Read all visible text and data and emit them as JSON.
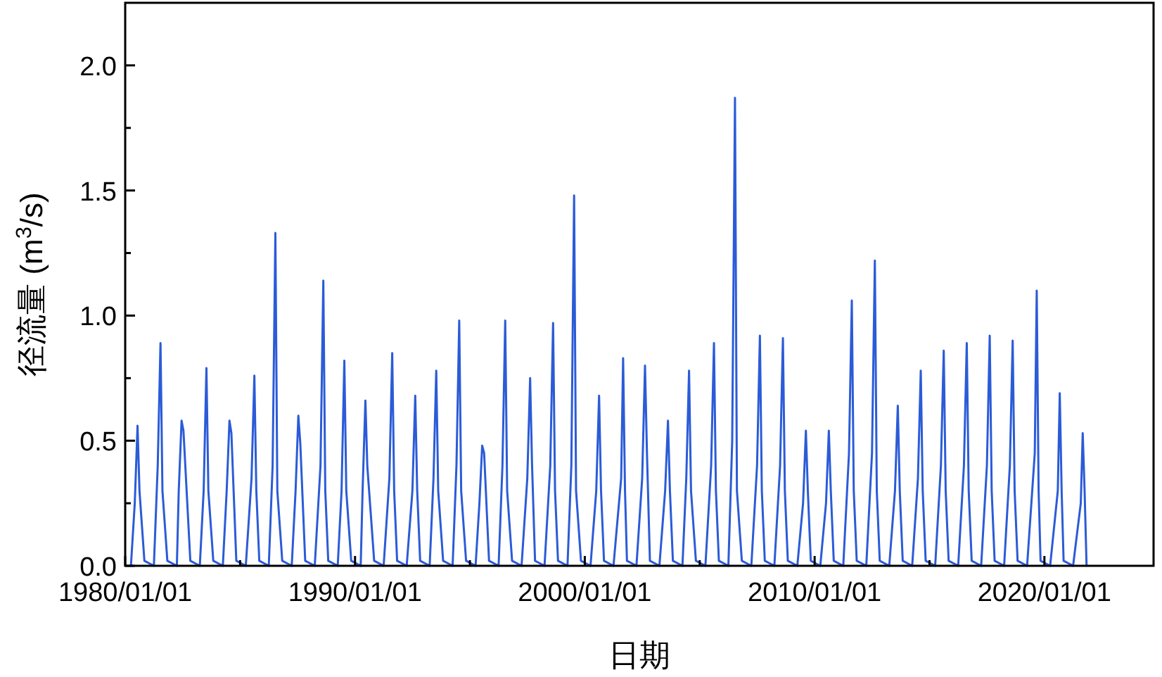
{
  "chart_data": {
    "type": "line",
    "xlabel": "日期",
    "ylabel": "径流量 (m$^{3}$/s)",
    "xlim": [
      "1980-01-01",
      "2024-10-01"
    ],
    "ylim": [
      0,
      2.25
    ],
    "xticks": [
      {
        "value": "1980-01-01",
        "label": "1980/01/01"
      },
      {
        "value": "1985-01-01",
        "label": null
      },
      {
        "value": "1990-01-01",
        "label": "1990/01/01"
      },
      {
        "value": "1995-01-01",
        "label": null
      },
      {
        "value": "2000-01-01",
        "label": "2000/01/01"
      },
      {
        "value": "2005-01-01",
        "label": null
      },
      {
        "value": "2010-01-01",
        "label": "2010/01/01"
      },
      {
        "value": "2015-01-01",
        "label": null
      },
      {
        "value": "2020-01-01",
        "label": "2020/01/01"
      }
    ],
    "yticks": [
      {
        "value": 0,
        "label": "0.0"
      },
      {
        "value": 0.25,
        "label": null
      },
      {
        "value": 0.5,
        "label": "0.5"
      },
      {
        "value": 0.75,
        "label": null
      },
      {
        "value": 1.0,
        "label": "1.0"
      },
      {
        "value": 1.25,
        "label": null
      },
      {
        "value": 1.5,
        "label": "1.5"
      },
      {
        "value": 1.75,
        "label": null
      },
      {
        "value": 2.0,
        "label": "2.0"
      }
    ],
    "series": [
      {
        "color": "#2b5bd7",
        "x": [
          "1980-04-01",
          "1980-06-01",
          "1980-07-15",
          "1980-08-15",
          "1980-11-01",
          "1981-04-01",
          "1981-06-01",
          "1981-07-15",
          "1981-08-15",
          "1981-11-01",
          "1982-04-01",
          "1982-05-01",
          "1982-06-15",
          "1982-07-15",
          "1982-11-01",
          "1983-04-01",
          "1983-06-01",
          "1983-07-15",
          "1983-08-15",
          "1983-11-01",
          "1984-04-01",
          "1984-06-01",
          "1984-07-15",
          "1984-08-15",
          "1984-11-01",
          "1985-04-01",
          "1985-07-01",
          "1985-08-15",
          "1985-09-15",
          "1985-11-01",
          "1986-04-01",
          "1986-06-01",
          "1986-07-15",
          "1986-08-15",
          "1986-11-01",
          "1987-04-01",
          "1987-06-01",
          "1987-07-15",
          "1987-08-15",
          "1987-11-01",
          "1988-04-01",
          "1988-07-01",
          "1988-08-15",
          "1988-09-15",
          "1988-11-01",
          "1989-04-01",
          "1989-06-01",
          "1989-07-15",
          "1989-08-15",
          "1989-11-01",
          "1990-04-01",
          "1990-05-01",
          "1990-06-15",
          "1990-07-15",
          "1990-11-01",
          "1991-04-01",
          "1991-07-01",
          "1991-08-15",
          "1991-09-15",
          "1991-11-01",
          "1992-04-01",
          "1992-07-01",
          "1992-08-15",
          "1992-09-15",
          "1992-11-01",
          "1993-04-01",
          "1993-06-01",
          "1993-07-15",
          "1993-08-15",
          "1993-11-01",
          "1994-04-01",
          "1994-06-01",
          "1994-07-15",
          "1994-08-15",
          "1994-11-01",
          "1995-04-01",
          "1995-06-01",
          "1995-07-15",
          "1995-08-15",
          "1995-11-01",
          "1996-04-01",
          "1996-06-01",
          "1996-07-15",
          "1996-08-15",
          "1996-11-01",
          "1997-04-01",
          "1997-07-01",
          "1997-08-15",
          "1997-09-15",
          "1997-11-01",
          "1998-04-01",
          "1998-07-01",
          "1998-08-15",
          "1998-09-15",
          "1998-11-01",
          "1999-04-01",
          "1999-06-01",
          "1999-07-15",
          "1999-08-15",
          "1999-11-01",
          "2000-04-01",
          "2000-07-01",
          "2000-08-15",
          "2000-09-15",
          "2000-11-01",
          "2001-04-01",
          "2001-08-01",
          "2001-09-01",
          "2001-10-01",
          "2001-11-01",
          "2002-04-01",
          "2002-07-01",
          "2002-08-15",
          "2002-09-15",
          "2002-11-01",
          "2003-04-01",
          "2003-07-01",
          "2003-08-15",
          "2003-09-15",
          "2003-11-01",
          "2004-04-01",
          "2004-06-01",
          "2004-07-15",
          "2004-08-15",
          "2004-11-01",
          "2005-04-01",
          "2005-07-01",
          "2005-08-15",
          "2005-09-15",
          "2005-11-01",
          "2006-04-01",
          "2006-06-01",
          "2006-07-15",
          "2006-08-15",
          "2006-11-01",
          "2007-04-01",
          "2007-07-01",
          "2007-08-15",
          "2007-09-15",
          "2007-11-01",
          "2008-04-01",
          "2008-07-01",
          "2008-08-15",
          "2008-09-15",
          "2008-11-01",
          "2009-04-01",
          "2009-07-01",
          "2009-08-15",
          "2009-09-15",
          "2009-11-01",
          "2010-04-01",
          "2010-07-01",
          "2010-08-15",
          "2010-09-15",
          "2010-11-01",
          "2011-04-01",
          "2011-07-01",
          "2011-08-15",
          "2011-09-15",
          "2011-11-01",
          "2012-04-01",
          "2012-07-01",
          "2012-08-15",
          "2012-09-15",
          "2012-11-01",
          "2013-04-01",
          "2013-07-01",
          "2013-08-15",
          "2013-09-15",
          "2013-11-01",
          "2014-04-01",
          "2014-07-01",
          "2014-08-15",
          "2014-09-15",
          "2014-11-01",
          "2015-04-01",
          "2015-07-01",
          "2015-08-15",
          "2015-09-15",
          "2015-11-01",
          "2016-04-01",
          "2016-07-01",
          "2016-08-15",
          "2016-09-15",
          "2016-11-01",
          "2017-04-01",
          "2017-07-01",
          "2017-08-15",
          "2017-09-15",
          "2017-11-01",
          "2018-04-01",
          "2018-07-01",
          "2018-08-15",
          "2018-09-15",
          "2018-11-01",
          "2019-04-01",
          "2019-08-01",
          "2019-09-01",
          "2019-10-01",
          "2019-11-01",
          "2020-04-01",
          "2020-08-01",
          "2020-09-01",
          "2020-10-01",
          "2020-11-01",
          "2021-04-01",
          "2021-08-01",
          "2021-09-01",
          "2021-10-01",
          "2021-11-01"
        ],
        "values": [
          0.0,
          0.25,
          0.56,
          0.3,
          0.02,
          0.0,
          0.4,
          0.89,
          0.3,
          0.02,
          0.0,
          0.3,
          0.58,
          0.54,
          0.02,
          0.0,
          0.3,
          0.79,
          0.3,
          0.02,
          0.0,
          0.3,
          0.58,
          0.53,
          0.02,
          0.0,
          0.35,
          0.76,
          0.3,
          0.02,
          0.0,
          0.4,
          1.33,
          0.3,
          0.02,
          0.0,
          0.3,
          0.6,
          0.49,
          0.02,
          0.0,
          0.4,
          1.14,
          0.3,
          0.02,
          0.0,
          0.3,
          0.82,
          0.3,
          0.02,
          0.0,
          0.3,
          0.66,
          0.4,
          0.02,
          0.0,
          0.35,
          0.85,
          0.3,
          0.02,
          0.0,
          0.3,
          0.68,
          0.3,
          0.02,
          0.0,
          0.35,
          0.78,
          0.3,
          0.02,
          0.0,
          0.4,
          0.98,
          0.3,
          0.02,
          0.0,
          0.25,
          0.48,
          0.45,
          0.02,
          0.0,
          0.4,
          0.98,
          0.3,
          0.02,
          0.0,
          0.35,
          0.75,
          0.4,
          0.02,
          0.0,
          0.4,
          0.97,
          0.3,
          0.02,
          0.0,
          0.4,
          1.48,
          0.3,
          0.02,
          0.0,
          0.3,
          0.68,
          0.3,
          0.02,
          0.0,
          0.35,
          0.83,
          0.3,
          0.02,
          0.0,
          0.35,
          0.8,
          0.45,
          0.02,
          0.0,
          0.3,
          0.58,
          0.3,
          0.02,
          0.0,
          0.35,
          0.78,
          0.3,
          0.02,
          0.0,
          0.4,
          0.89,
          0.3,
          0.02,
          0.0,
          0.5,
          1.87,
          0.3,
          0.02,
          0.0,
          0.4,
          0.92,
          0.3,
          0.02,
          0.0,
          0.4,
          0.91,
          0.3,
          0.02,
          0.0,
          0.25,
          0.54,
          0.3,
          0.02,
          0.0,
          0.25,
          0.54,
          0.3,
          0.02,
          0.0,
          0.45,
          1.06,
          0.3,
          0.02,
          0.0,
          0.45,
          1.22,
          0.3,
          0.02,
          0.0,
          0.3,
          0.64,
          0.3,
          0.02,
          0.0,
          0.35,
          0.78,
          0.3,
          0.02,
          0.0,
          0.4,
          0.86,
          0.3,
          0.02,
          0.0,
          0.4,
          0.89,
          0.3,
          0.02,
          0.0,
          0.4,
          0.92,
          0.3,
          0.02,
          0.0,
          0.4,
          0.9,
          0.3,
          0.02,
          0.0,
          0.45,
          1.1,
          0.3,
          0.02,
          0.0,
          0.3,
          0.69,
          0.3,
          0.02,
          0.0,
          0.25,
          0.53,
          0.3,
          0.0
        ]
      }
    ]
  }
}
